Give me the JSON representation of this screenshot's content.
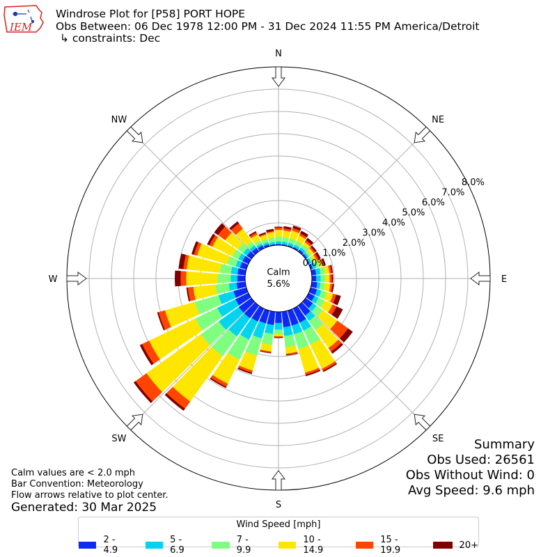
{
  "header": {
    "logo_text": "IEM",
    "title_line1": "Windrose Plot for [P58] PORT HOPE",
    "title_line2": "Obs Between: 06 Dec 1978 12:00 PM - 31 Dec 2024 11:55 PM America/Detroit",
    "title_line3": "↳ constraints: Dec"
  },
  "footer": {
    "note1": "Calm values are < 2.0 mph",
    "note2": "Bar Convention: Meteorology",
    "note3": "Flow arrows relative to plot center.",
    "generated": "Generated: 30 Mar 2025"
  },
  "summary": {
    "title": "Summary",
    "obs_used": "Obs Used: 26561",
    "obs_without_wind": "Obs Without Wind: 0",
    "avg_speed": "Avg Speed: 9.6 mph"
  },
  "legend": {
    "title": "Wind Speed [mph]",
    "items": [
      "2 - 4.9",
      "5 - 6.9",
      "7 - 9.9",
      "10 - 14.9",
      "15 - 19.9",
      "20+"
    ]
  },
  "chart_data": {
    "type": "windrose",
    "direction_labels": [
      "N",
      "NE",
      "E",
      "SE",
      "S",
      "SW",
      "W",
      "NW"
    ],
    "radial_tick_labels": [
      "0.0%",
      "1.0%",
      "2.0%",
      "3.0%",
      "4.0%",
      "5.0%",
      "6.0%",
      "7.0%",
      "8.0%"
    ],
    "radial_range_percent": [
      0,
      8
    ],
    "calm_label": "Calm",
    "calm_value": "5.6%",
    "calm_percent": 5.6,
    "speed_bins": [
      "2 - 4.9",
      "5 - 6.9",
      "7 - 9.9",
      "10 - 14.9",
      "15 - 19.9",
      "20+"
    ],
    "bin_colors": [
      "#0d2af5",
      "#00d4ee",
      "#7fff7f",
      "#ffe600",
      "#ff4500",
      "#800000"
    ],
    "direction_degrees": [
      0,
      10,
      20,
      30,
      40,
      50,
      60,
      70,
      80,
      90,
      100,
      110,
      120,
      130,
      140,
      150,
      160,
      170,
      180,
      190,
      200,
      210,
      220,
      230,
      240,
      250,
      260,
      270,
      280,
      290,
      300,
      310,
      320,
      330,
      340,
      350
    ],
    "bin_percent_by_direction": [
      [
        0.05,
        0.12,
        0.22,
        0.3,
        0.1,
        0.03
      ],
      [
        0.05,
        0.12,
        0.2,
        0.3,
        0.1,
        0.08
      ],
      [
        0.05,
        0.12,
        0.22,
        0.35,
        0.12,
        0.1
      ],
      [
        0.07,
        0.12,
        0.18,
        0.28,
        0.1,
        0.12
      ],
      [
        0.1,
        0.12,
        0.15,
        0.15,
        0.1,
        0.12
      ],
      [
        0.08,
        0.1,
        0.12,
        0.15,
        0.08,
        0.08
      ],
      [
        0.05,
        0.1,
        0.1,
        0.15,
        0.1,
        0.1
      ],
      [
        0.1,
        0.15,
        0.15,
        0.15,
        0.1,
        0.05
      ],
      [
        0.2,
        0.2,
        0.2,
        0.2,
        0.1,
        0.05
      ],
      [
        0.2,
        0.2,
        0.2,
        0.2,
        0.1,
        0.05
      ],
      [
        0.25,
        0.15,
        0.2,
        0.25,
        0.1,
        0.05
      ],
      [
        0.3,
        0.2,
        0.25,
        0.3,
        0.15,
        0.2
      ],
      [
        0.3,
        0.2,
        0.3,
        0.4,
        0.2,
        0.3
      ],
      [
        0.4,
        0.2,
        0.35,
        0.8,
        0.6,
        0.25
      ],
      [
        0.55,
        0.3,
        0.5,
        1.0,
        0.2,
        0.1
      ],
      [
        0.7,
        0.4,
        0.7,
        1.2,
        0.1,
        0.05
      ],
      [
        0.7,
        0.4,
        0.7,
        1.1,
        0.1,
        0.05
      ],
      [
        0.7,
        0.4,
        0.5,
        0.3,
        0.05,
        0.02
      ],
      [
        0.5,
        0.3,
        0.2,
        0.1,
        0.05,
        0.02
      ],
      [
        0.6,
        0.4,
        0.5,
        0.3,
        0.05,
        0.02
      ],
      [
        0.6,
        0.7,
        0.8,
        0.7,
        0.1,
        0.05
      ],
      [
        0.65,
        0.9,
        1.0,
        1.2,
        0.15,
        0.05
      ],
      [
        0.7,
        1.0,
        1.1,
        2.5,
        0.4,
        0.1
      ],
      [
        0.7,
        1.1,
        1.0,
        3.0,
        0.6,
        0.1
      ],
      [
        0.65,
        0.9,
        1.1,
        2.3,
        0.35,
        0.1
      ],
      [
        0.6,
        0.7,
        1.1,
        1.4,
        0.3,
        0.05
      ],
      [
        0.4,
        0.35,
        0.6,
        1.0,
        0.25,
        0.05
      ],
      [
        0.35,
        0.3,
        0.6,
        1.4,
        0.25,
        0.25
      ],
      [
        0.35,
        0.3,
        0.5,
        1.5,
        0.15,
        0.2
      ],
      [
        0.3,
        0.2,
        0.4,
        1.4,
        0.15,
        0.1
      ],
      [
        0.3,
        0.2,
        0.3,
        1.0,
        0.15,
        0.1
      ],
      [
        0.25,
        0.2,
        0.3,
        0.7,
        0.4,
        0.2
      ],
      [
        0.2,
        0.15,
        0.2,
        0.7,
        0.3,
        0.1
      ],
      [
        0.15,
        0.1,
        0.15,
        0.3,
        0.1,
        0.05
      ],
      [
        0.1,
        0.1,
        0.15,
        0.2,
        0.05,
        0.05
      ],
      [
        0.05,
        0.1,
        0.2,
        0.25,
        0.05,
        0.08
      ]
    ],
    "grid": true
  }
}
